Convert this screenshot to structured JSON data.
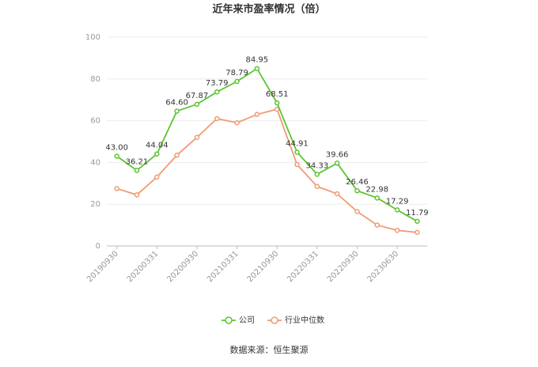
{
  "chart_data": {
    "type": "line",
    "title": "近年来市盈率情况（倍）",
    "source": "数据来源：恒生聚源",
    "categories": [
      "20190930",
      null,
      "20200331",
      null,
      "20200930",
      null,
      "20210331",
      null,
      "20210930",
      null,
      "20220331",
      null,
      "20220930",
      null,
      "20230630",
      null
    ],
    "series": [
      {
        "name": "公司",
        "color": "#5cc42e",
        "values": [
          43.0,
          36.21,
          44.04,
          64.6,
          67.87,
          73.79,
          78.79,
          84.95,
          68.51,
          44.91,
          34.33,
          39.66,
          26.46,
          22.98,
          17.29,
          11.79
        ],
        "value_labels": [
          "43.00",
          "36.21",
          "44.04",
          "64.60",
          "67.87",
          "73.79",
          "78.79",
          "84.95",
          "68.51",
          "44.91",
          "34.33",
          "39.66",
          "26.46",
          "22.98",
          "17.29",
          "11.79"
        ]
      },
      {
        "name": "行业中位数",
        "color": "#f09a73",
        "values": [
          27.5,
          24.5,
          33,
          43.5,
          52,
          61,
          59,
          63,
          65.5,
          39,
          28.5,
          25,
          16.5,
          10,
          7.5,
          6.5
        ]
      }
    ],
    "ylim": [
      0,
      100
    ],
    "yticks": [
      0,
      20,
      40,
      60,
      80,
      100
    ],
    "grid": true
  }
}
